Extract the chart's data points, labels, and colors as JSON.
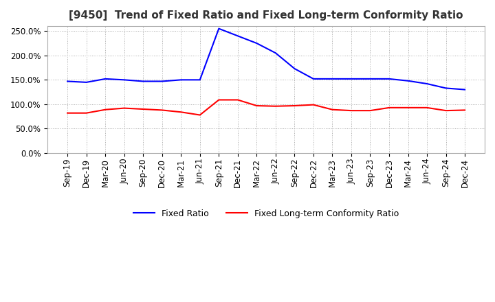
{
  "title": "[9450]  Trend of Fixed Ratio and Fixed Long-term Conformity Ratio",
  "x_labels": [
    "Sep-19",
    "Dec-19",
    "Mar-20",
    "Jun-20",
    "Sep-20",
    "Dec-20",
    "Mar-21",
    "Jun-21",
    "Sep-21",
    "Dec-21",
    "Mar-22",
    "Jun-22",
    "Sep-22",
    "Dec-22",
    "Mar-23",
    "Jun-23",
    "Sep-23",
    "Dec-23",
    "Mar-24",
    "Jun-24",
    "Sep-24",
    "Dec-24"
  ],
  "fixed_ratio": [
    1.47,
    1.45,
    1.52,
    1.5,
    1.47,
    1.47,
    1.5,
    1.5,
    2.55,
    2.4,
    2.25,
    2.05,
    1.73,
    1.52,
    1.52,
    1.52,
    1.52,
    1.52,
    1.48,
    1.42,
    1.33,
    1.3
  ],
  "fixed_lt_ratio": [
    0.82,
    0.82,
    0.89,
    0.92,
    0.9,
    0.88,
    0.84,
    0.78,
    1.09,
    1.09,
    0.97,
    0.96,
    0.97,
    0.99,
    0.89,
    0.87,
    0.87,
    0.93,
    0.93,
    0.93,
    0.87,
    0.88
  ],
  "ylim": [
    0.0,
    2.6
  ],
  "yticks": [
    0.0,
    0.5,
    1.0,
    1.5,
    2.0,
    2.5
  ],
  "line_color_fixed": "#0000ff",
  "line_color_lt": "#ff0000",
  "background_color": "#ffffff",
  "grid_color": "#aaaaaa",
  "legend_fixed": "Fixed Ratio",
  "legend_lt": "Fixed Long-term Conformity Ratio",
  "title_fontsize": 11,
  "tick_fontsize": 8.5,
  "legend_fontsize": 9
}
